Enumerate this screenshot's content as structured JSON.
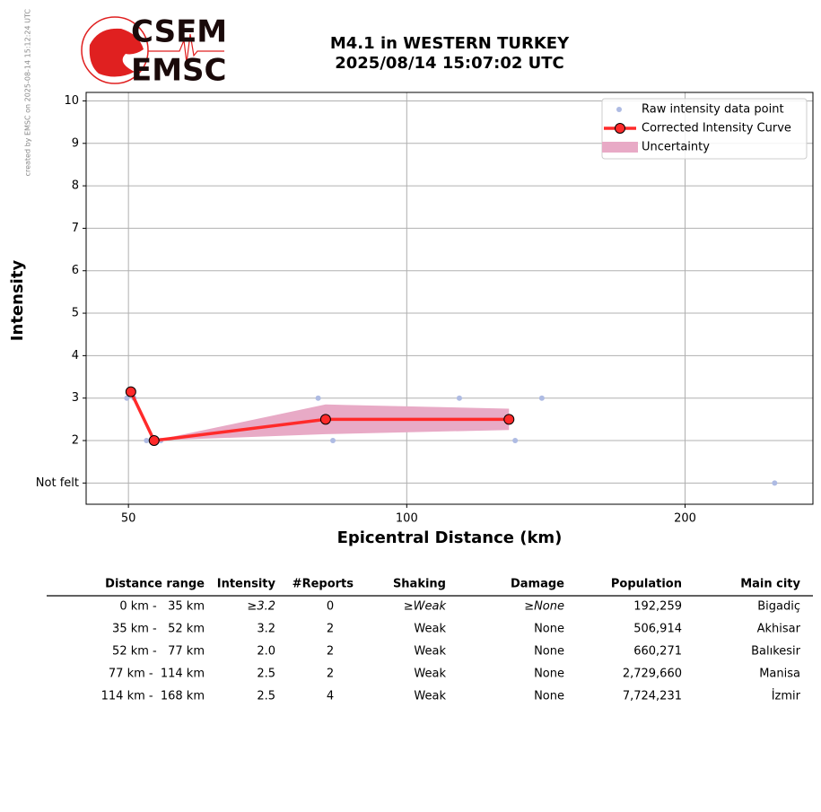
{
  "credit": "created by EMSC on 2025-08-14 15:12:24 UTC",
  "logo": {
    "top": "CSEM",
    "bottom": "EMSC"
  },
  "chart_data": {
    "type": "line",
    "title": [
      "M4.1 in WESTERN TURKEY",
      "2025/08/14 15:07:02 UTC"
    ],
    "x_label": "Epicentral Distance (km)",
    "y_label": "Intensity",
    "xscale": "log",
    "grid": true,
    "legend": "upper right",
    "xlim": [
      45,
      275
    ],
    "ylim": [
      0.5,
      10.2
    ],
    "xticks": [
      50,
      100,
      200
    ],
    "yticks": [
      {
        "value": 1,
        "label": "Not felt"
      },
      2,
      3,
      4,
      5,
      6,
      7,
      8,
      9,
      10
    ],
    "series": [
      {
        "name": "Raw intensity data point",
        "kind": "scatter",
        "color": "#aebbe3",
        "x": [
          49.8,
          50.7,
          52.3,
          54.2,
          80.2,
          83.2,
          114,
          131,
          140,
          250
        ],
        "values": [
          3,
          3,
          2,
          2,
          3,
          2,
          3,
          2,
          3,
          1
        ]
      },
      {
        "name": "Corrected Intensity Curve",
        "kind": "line",
        "color": "#ff2a2a",
        "x": [
          50.3,
          53.3,
          81.7,
          129
        ],
        "values": [
          3.15,
          2.0,
          2.5,
          2.5
        ]
      },
      {
        "name": "Uncertainty",
        "kind": "band",
        "color": "#e8aac6",
        "x": [
          50.3,
          53.3,
          81.7,
          129
        ],
        "lower": [
          3.15,
          2.0,
          2.15,
          2.25
        ],
        "upper": [
          3.15,
          2.0,
          2.85,
          2.75
        ]
      }
    ]
  },
  "table": {
    "columns": [
      "Distance range",
      "Intensity",
      "#Reports",
      "Shaking",
      "Damage",
      "Population",
      "Main city"
    ],
    "rows": [
      [
        "0 km -   35 km",
        "≥3.2",
        "0",
        "≥Weak",
        "≥None",
        "192,259",
        "Bigadiç"
      ],
      [
        "35 km -   52 km",
        "3.2",
        "2",
        "Weak",
        "None",
        "506,914",
        "Akhisar"
      ],
      [
        "52 km -   77 km",
        "2.0",
        "2",
        "Weak",
        "None",
        "660,271",
        "Balıkesir"
      ],
      [
        "77 km -  114 km",
        "2.5",
        "2",
        "Weak",
        "None",
        "2,729,660",
        "Manisa"
      ],
      [
        "114 km -  168 km",
        "2.5",
        "4",
        "Weak",
        "None",
        "7,724,231",
        "İzmir"
      ]
    ]
  }
}
